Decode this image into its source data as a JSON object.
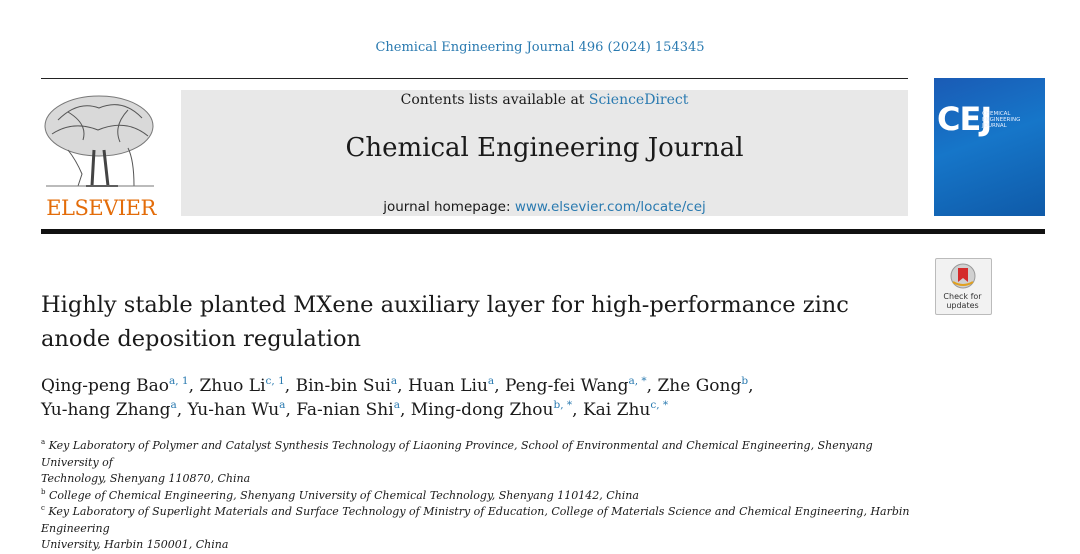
{
  "citation": "Chemical Engineering Journal 496 (2024) 154345",
  "publisher": {
    "name": "ELSEVIER",
    "logo_icon": "elsevier-tree-icon"
  },
  "header": {
    "contents_prefix": "Contents lists available at ",
    "contents_link": "ScienceDirect",
    "journal_title": "Chemical Engineering Journal",
    "homepage_prefix": "journal homepage: ",
    "homepage_link": "www.elsevier.com/locate/cej"
  },
  "cover": {
    "abbr": "CEJ",
    "subtitle": "CHEMICAL ENGINEERING JOURNAL",
    "color": "#1676c9"
  },
  "check_updates": {
    "label_line1": "Check for",
    "label_line2": "updates",
    "icon": "check-for-updates-icon"
  },
  "article": {
    "title_line1": "Highly stable planted MXene auxiliary layer for high-performance zinc",
    "title_line2": "anode deposition regulation"
  },
  "authors": [
    {
      "name": "Qing-peng Bao",
      "sup": "a, 1",
      "sep": ", "
    },
    {
      "name": "Zhuo Li",
      "sup": "c, 1",
      "sep": ", "
    },
    {
      "name": "Bin-bin Sui",
      "sup": "a",
      "sep": ", "
    },
    {
      "name": "Huan Liu",
      "sup": "a",
      "sep": ", "
    },
    {
      "name": "Peng-fei Wang",
      "sup": "a, *",
      "sep": ", "
    },
    {
      "name": "Zhe Gong",
      "sup": "b",
      "sep": ","
    },
    {
      "name": "Yu-hang Zhang",
      "sup": "a",
      "sep": ", "
    },
    {
      "name": "Yu-han Wu",
      "sup": "a",
      "sep": ", "
    },
    {
      "name": "Fa-nian Shi",
      "sup": "a",
      "sep": ", "
    },
    {
      "name": "Ming-dong Zhou",
      "sup": "b, *",
      "sep": ", "
    },
    {
      "name": "Kai Zhu",
      "sup": "c, *",
      "sep": ""
    }
  ],
  "affiliations": [
    {
      "mark": "a",
      "line1": "Key Laboratory of Polymer and Catalyst Synthesis Technology of Liaoning Province, School of Environmental and Chemical Engineering, Shenyang University of",
      "line2": "Technology, Shenyang 110870, China"
    },
    {
      "mark": "b",
      "line1": "College of Chemical Engineering, Shenyang University of Chemical Technology, Shenyang 110142, China",
      "line2": ""
    },
    {
      "mark": "c",
      "line1": "Key Laboratory of Superlight Materials and Surface Technology of Ministry of Education, College of Materials Science and Chemical Engineering, Harbin Engineering",
      "line2": "University, Harbin 150001, China"
    }
  ],
  "colors": {
    "link": "#2a7ab0",
    "publisher": "#e36c09"
  }
}
